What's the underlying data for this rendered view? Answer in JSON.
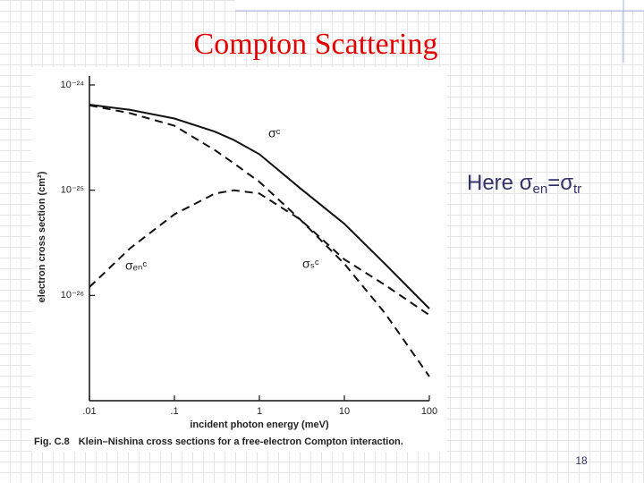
{
  "slide": {
    "title": "Compton Scattering",
    "note": [
      "Here σ",
      "en",
      "=σ",
      "tr"
    ],
    "page": "18"
  },
  "chart_data": {
    "type": "line",
    "x_label": "incident photon energy (meV)",
    "y_label": "electron cross section (cm²)",
    "caption_label": "Fig. C.8",
    "caption": "Klein–Nishina cross sections for a free-electron Compton interaction.",
    "xscale": "log",
    "yscale": "log",
    "xlim": [
      0.01,
      100
    ],
    "ylim": [
      1e-27,
      1e-24
    ],
    "xticks": [
      {
        "value": 0.01,
        "label": ".01"
      },
      {
        "value": 0.1,
        "label": ".1"
      },
      1,
      10,
      100
    ],
    "yticks": [
      {
        "value": 1e-24,
        "label": "10⁻²⁴"
      },
      {
        "value": 1e-25,
        "label": "10⁻²⁵"
      },
      {
        "value": 1e-26,
        "label": "10⁻²⁶"
      }
    ],
    "x": [
      0.01,
      0.03,
      0.1,
      0.3,
      0.5,
      1,
      3,
      10,
      30,
      100
    ],
    "series": [
      {
        "name": "σᶜ",
        "color": "#111111",
        "style": "solid",
        "values": [
          6.5e-25,
          5.8e-25,
          4.8e-25,
          3.6e-25,
          3e-25,
          2.2e-25,
          1.05e-25,
          4.8e-26,
          2e-26,
          7.5e-27
        ]
      },
      {
        "name": "σₛᶜ",
        "color": "#111111",
        "style": "dashed",
        "values": [
          6.4e-25,
          5.4e-25,
          4.1e-25,
          2.4e-25,
          1.8e-25,
          1.2e-25,
          5.3e-26,
          2e-26,
          6.8e-27,
          1.7e-27
        ]
      },
      {
        "name": "σₑₙᶜ",
        "color": "#111111",
        "style": "dashed",
        "values": [
          1.2e-26,
          2.8e-26,
          5.9e-26,
          9.3e-26,
          1e-25,
          9.3e-26,
          5.3e-26,
          2.2e-26,
          1.26e-26,
          6.5e-27
        ]
      }
    ]
  }
}
